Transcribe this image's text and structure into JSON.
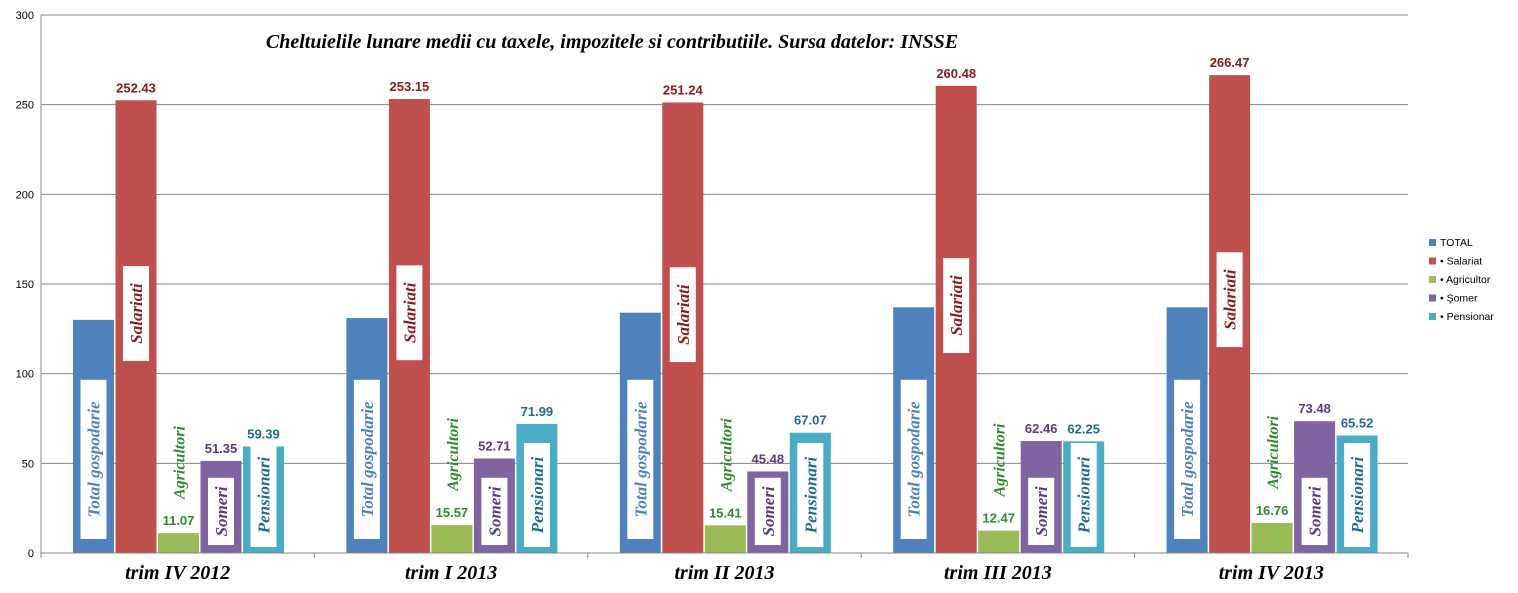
{
  "chart_data": {
    "type": "bar",
    "title": "Cheltuielile lunare medii cu taxele, impozitele si contributiile. Sursa datelor: INSSE",
    "categories": [
      "trim IV 2012",
      "trim I 2013",
      "trim II 2013",
      "trim III 2013",
      "trim IV 2013"
    ],
    "ylim": [
      0,
      300
    ],
    "yticks": [
      0,
      50,
      100,
      150,
      200,
      250,
      300
    ],
    "grid": true,
    "legend_position": "right",
    "series": [
      {
        "name": "TOTAL",
        "color": "#4f81bd",
        "values": [
          130,
          131,
          134,
          137,
          137
        ],
        "show_labels": false,
        "bar_annotation": "Total gospodarie",
        "label_color": "#4f81bd"
      },
      {
        "name": "• Salariat",
        "color": "#c0504d",
        "values": [
          252.43,
          253.15,
          251.24,
          260.48,
          266.47
        ],
        "show_labels": true,
        "bar_annotation": "Salariati",
        "label_color": "#8b1a1a"
      },
      {
        "name": "• Agricultor",
        "color": "#9bbb59",
        "values": [
          11.07,
          15.57,
          15.41,
          12.47,
          16.76
        ],
        "show_labels": true,
        "bar_annotation": "Agricultori",
        "label_color": "#2e8b2e"
      },
      {
        "name": "• Şomer",
        "color": "#8064a2",
        "values": [
          51.35,
          52.71,
          45.48,
          62.46,
          73.48
        ],
        "show_labels": true,
        "bar_annotation": "Someri",
        "label_color": "#5b3a82"
      },
      {
        "name": "• Pensionar",
        "color": "#4bacc6",
        "values": [
          59.39,
          71.99,
          67.07,
          62.25,
          65.52
        ],
        "show_labels": true,
        "bar_annotation": "Pensionari",
        "label_color": "#1f6b8f"
      }
    ]
  }
}
